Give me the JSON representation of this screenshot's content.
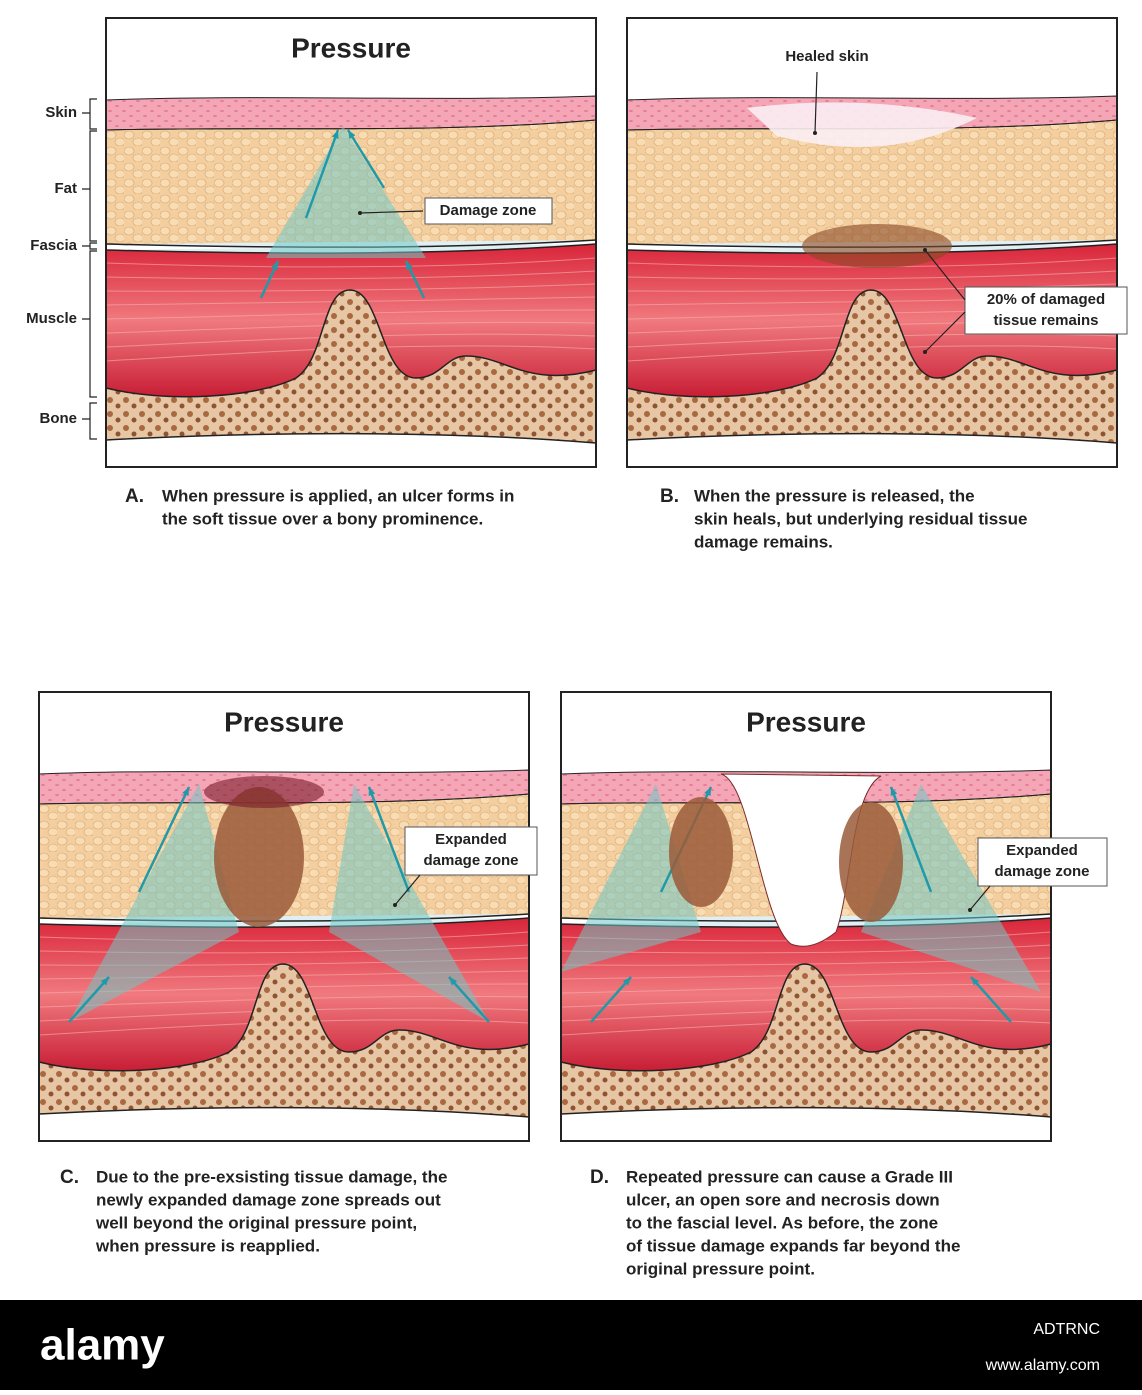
{
  "panels": [
    {
      "title": "Pressure",
      "letter": "A.",
      "caption": [
        "When pressure is applied, an ulcer forms in",
        "the soft tissue over a bony prominence."
      ],
      "callouts": [
        [
          "Damage zone"
        ]
      ]
    },
    {
      "letter": "B.",
      "caption": [
        "When the pressure is released, the",
        "skin heals, but underlying residual tissue",
        "damage remains."
      ],
      "callouts": [
        [
          "Healed skin"
        ],
        [
          "20% of damaged",
          "tissue remains"
        ]
      ]
    },
    {
      "title": "Pressure",
      "letter": "C.",
      "caption": [
        "Due to the pre-exsisting tissue damage, the",
        "newly expanded damage zone spreads out",
        "well beyond the original pressure point,",
        "when pressure is reapplied."
      ],
      "callouts": [
        [
          "Expanded",
          "damage zone"
        ]
      ]
    },
    {
      "title": "Pressure",
      "letter": "D.",
      "caption": [
        "Repeated pressure can cause a Grade III",
        "ulcer, an open sore and necrosis down",
        "to the fascial level. As before, the zone",
        "of tissue damage expands far beyond the",
        "original pressure point."
      ],
      "callouts": [
        [
          "Expanded",
          "damage zone"
        ]
      ]
    }
  ],
  "layer_labels": [
    "Skin",
    "Fat",
    "Fascia",
    "Muscle",
    "Bone"
  ],
  "footer": {
    "brand": "alamy",
    "image_id": "ADTRNC",
    "url": "www.alamy.com"
  }
}
